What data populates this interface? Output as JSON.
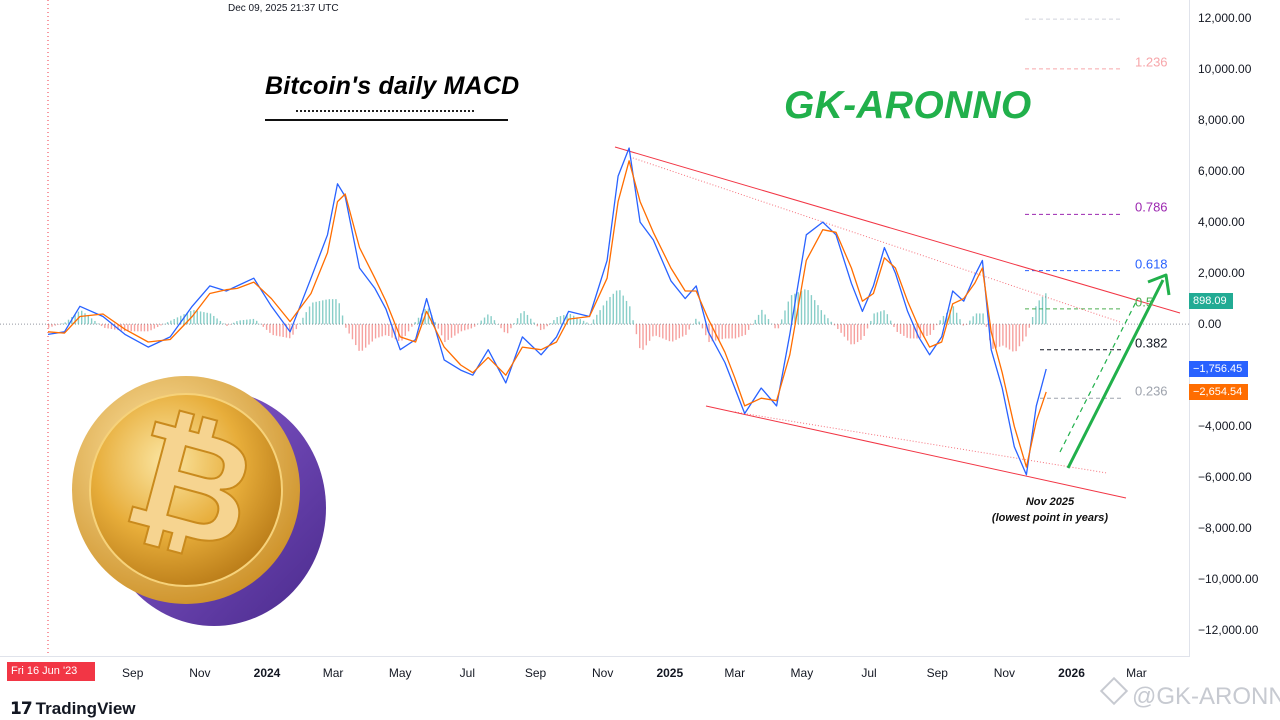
{
  "timestamp": "Dec 09, 2025 21:37 UTC",
  "title": "Bitcoin's daily MACD",
  "author": "GK-ARONNO",
  "start_date_flag": "Fri 16 Jun '23",
  "annotation": {
    "line1": "Nov 2025",
    "line2": "(lowest point in years)"
  },
  "branding": {
    "tradingview": "TradingView",
    "watermark": "@GK-ARONNO"
  },
  "icons": [
    "bitcoin-coin-icon",
    "tradingview-logo-icon",
    "binance-watermark-icon"
  ],
  "colors": {
    "macd_line": "#2962ff",
    "signal_line": "#ff6d00",
    "hist_positive": "#26a69a",
    "hist_negative": "#ef5350",
    "channel": "#f23645",
    "arrow": "#21b04b"
  },
  "value_badges": [
    {
      "label": "898.09",
      "value": 898.09,
      "color": "#22ab94"
    },
    {
      "label": "−1,756.45",
      "value": -1756.45,
      "color": "#2962ff"
    },
    {
      "label": "−2,654.54",
      "value": -2654.54,
      "color": "#ff6d00"
    }
  ],
  "fib_levels": [
    {
      "label": "1.236",
      "value": 10000,
      "color": "#f7a6aa"
    },
    {
      "label": "0.786",
      "value": 4300,
      "color": "#9c27b0"
    },
    {
      "label": "0.618",
      "value": 2100,
      "color": "#2962ff"
    },
    {
      "label": "0.5",
      "value": 600,
      "color": "#4caf50"
    },
    {
      "label": "0.382",
      "value": -1000,
      "color": "#131722"
    },
    {
      "label": "0.236",
      "value": -2900,
      "color": "#9ea3ad"
    }
  ],
  "chart_data": {
    "type": "line",
    "title": "Bitcoin's daily MACD",
    "xlabel": "",
    "ylabel": "",
    "ylim": [
      -13000,
      12700
    ],
    "x_ticks": [
      {
        "label": "Sep",
        "date": "2023-09-01",
        "bold": false
      },
      {
        "label": "Nov",
        "date": "2023-11-01",
        "bold": false
      },
      {
        "label": "2024",
        "date": "2024-01-01",
        "bold": true
      },
      {
        "label": "Mar",
        "date": "2024-03-01",
        "bold": false
      },
      {
        "label": "May",
        "date": "2024-05-01",
        "bold": false
      },
      {
        "label": "Jul",
        "date": "2024-07-01",
        "bold": false
      },
      {
        "label": "Sep",
        "date": "2024-09-01",
        "bold": false
      },
      {
        "label": "Nov",
        "date": "2024-11-01",
        "bold": false
      },
      {
        "label": "2025",
        "date": "2025-01-01",
        "bold": true
      },
      {
        "label": "Mar",
        "date": "2025-03-01",
        "bold": false
      },
      {
        "label": "May",
        "date": "2025-05-01",
        "bold": false
      },
      {
        "label": "Jul",
        "date": "2025-07-01",
        "bold": false
      },
      {
        "label": "Sep",
        "date": "2025-09-01",
        "bold": false
      },
      {
        "label": "Nov",
        "date": "2025-11-01",
        "bold": false
      },
      {
        "label": "2026",
        "date": "2026-01-01",
        "bold": true
      },
      {
        "label": "Mar",
        "date": "2026-03-01",
        "bold": false
      }
    ],
    "y_ticks": [
      {
        "label": "12,000.00",
        "value": 12000
      },
      {
        "label": "10,000.00",
        "value": 10000
      },
      {
        "label": "8,000.00",
        "value": 8000
      },
      {
        "label": "6,000.00",
        "value": 6000
      },
      {
        "label": "4,000.00",
        "value": 4000
      },
      {
        "label": "2,000.00",
        "value": 2000
      },
      {
        "label": "0.00",
        "value": 0
      },
      {
        "label": "−4,000.00",
        "value": -4000
      },
      {
        "label": "−6,000.00",
        "value": -6000
      },
      {
        "label": "−8,000.00",
        "value": -8000
      },
      {
        "label": "−10,000.00",
        "value": -10000
      },
      {
        "label": "−12,000.00",
        "value": -12000
      }
    ],
    "series": [
      {
        "name": "MACD",
        "color": "#2962ff",
        "x": [
          "2023-06-16",
          "2023-07-01",
          "2023-07-15",
          "2023-08-05",
          "2023-08-25",
          "2023-09-15",
          "2023-10-05",
          "2023-10-25",
          "2023-11-10",
          "2023-11-25",
          "2023-12-05",
          "2023-12-20",
          "2024-01-05",
          "2024-01-22",
          "2024-02-10",
          "2024-02-25",
          "2024-03-05",
          "2024-03-12",
          "2024-03-25",
          "2024-04-08",
          "2024-04-18",
          "2024-05-01",
          "2024-05-15",
          "2024-05-25",
          "2024-06-10",
          "2024-06-25",
          "2024-07-06",
          "2024-07-20",
          "2024-08-05",
          "2024-08-20",
          "2024-09-06",
          "2024-09-20",
          "2024-10-01",
          "2024-10-20",
          "2024-11-05",
          "2024-11-15",
          "2024-11-25",
          "2024-12-05",
          "2024-12-17",
          "2025-01-02",
          "2025-01-15",
          "2025-01-25",
          "2025-02-05",
          "2025-02-20",
          "2025-03-01",
          "2025-03-10",
          "2025-03-25",
          "2025-04-08",
          "2025-04-20",
          "2025-05-05",
          "2025-05-20",
          "2025-06-01",
          "2025-06-15",
          "2025-06-25",
          "2025-07-05",
          "2025-07-15",
          "2025-07-25",
          "2025-08-05",
          "2025-08-15",
          "2025-08-25",
          "2025-09-05",
          "2025-09-15",
          "2025-09-25",
          "2025-10-05",
          "2025-10-12",
          "2025-10-20",
          "2025-10-30",
          "2025-11-10",
          "2025-11-21",
          "2025-11-30",
          "2025-12-09"
        ],
        "y": [
          -400,
          -300,
          700,
          300,
          -400,
          -900,
          -500,
          700,
          1500,
          1300,
          1500,
          1800,
          700,
          -300,
          1800,
          3500,
          5500,
          5000,
          2200,
          1400,
          600,
          -1000,
          -600,
          1000,
          -1400,
          -1800,
          -2000,
          -1000,
          -2300,
          -500,
          -1200,
          -500,
          500,
          300,
          2500,
          5800,
          6900,
          4000,
          3300,
          1700,
          1000,
          1500,
          -300,
          -1500,
          -2500,
          -3500,
          -2500,
          -3200,
          -400,
          3500,
          4000,
          3500,
          1600,
          500,
          1500,
          3000,
          2000,
          500,
          -500,
          -1200,
          -500,
          1300,
          900,
          1900,
          2500,
          -1000,
          -2500,
          -4800,
          -5900,
          -3200,
          -1756
        ]
      },
      {
        "name": "Signal",
        "color": "#ff6d00",
        "x": [
          "2023-06-16",
          "2023-07-01",
          "2023-07-15",
          "2023-08-05",
          "2023-08-25",
          "2023-09-15",
          "2023-10-05",
          "2023-10-25",
          "2023-11-10",
          "2023-11-25",
          "2023-12-05",
          "2023-12-20",
          "2024-01-05",
          "2024-01-22",
          "2024-02-10",
          "2024-02-25",
          "2024-03-05",
          "2024-03-12",
          "2024-03-25",
          "2024-04-08",
          "2024-04-18",
          "2024-05-01",
          "2024-05-15",
          "2024-05-25",
          "2024-06-10",
          "2024-06-25",
          "2024-07-06",
          "2024-07-20",
          "2024-08-05",
          "2024-08-20",
          "2024-09-06",
          "2024-09-20",
          "2024-10-01",
          "2024-10-20",
          "2024-11-05",
          "2024-11-15",
          "2024-11-25",
          "2024-12-05",
          "2024-12-17",
          "2025-01-02",
          "2025-01-15",
          "2025-01-25",
          "2025-02-05",
          "2025-02-20",
          "2025-03-01",
          "2025-03-10",
          "2025-03-25",
          "2025-04-08",
          "2025-04-20",
          "2025-05-05",
          "2025-05-20",
          "2025-06-01",
          "2025-06-15",
          "2025-06-25",
          "2025-07-05",
          "2025-07-15",
          "2025-07-25",
          "2025-08-05",
          "2025-08-15",
          "2025-08-25",
          "2025-09-05",
          "2025-09-15",
          "2025-09-25",
          "2025-10-05",
          "2025-10-12",
          "2025-10-20",
          "2025-10-30",
          "2025-11-10",
          "2025-11-21",
          "2025-11-30",
          "2025-12-09"
        ],
        "y": [
          -300,
          -350,
          300,
          400,
          -200,
          -700,
          -600,
          300,
          1200,
          1350,
          1400,
          1650,
          1000,
          100,
          1200,
          2800,
          4800,
          5100,
          3000,
          1800,
          900,
          -500,
          -700,
          500,
          -900,
          -1600,
          -1900,
          -1300,
          -2000,
          -900,
          -1000,
          -700,
          200,
          300,
          1800,
          4800,
          6400,
          4800,
          3600,
          2200,
          1300,
          1300,
          200,
          -1100,
          -2100,
          -3200,
          -2900,
          -3000,
          -1200,
          2500,
          3700,
          3600,
          2200,
          900,
          1200,
          2600,
          2200,
          900,
          -100,
          -900,
          -700,
          800,
          1000,
          1600,
          2200,
          -300,
          -1900,
          -4000,
          -5600,
          -3800,
          -2654
        ]
      }
    ],
    "annotations": [
      {
        "text": "Nov 2025",
        "date": "2025-11-25"
      },
      {
        "text": "(lowest point in years)",
        "date": "2025-11-25"
      }
    ]
  }
}
